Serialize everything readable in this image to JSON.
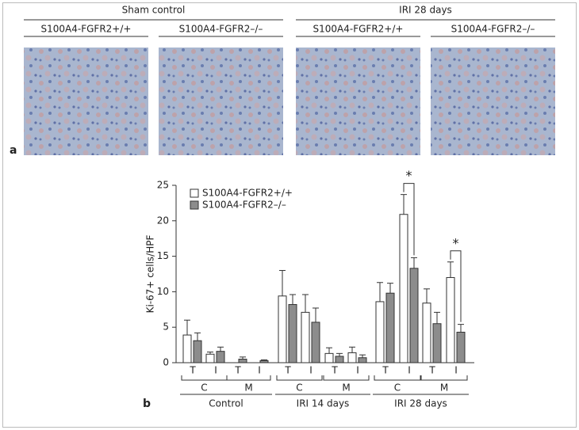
{
  "panel_a": {
    "label": "a",
    "headers": [
      "Sham control",
      "IRI 28 days"
    ],
    "images": [
      "S100A4-FGFR2+/+",
      "S100A4-FGFR2–/–",
      "S100A4-FGFR2+/+",
      "S100A4-FGFR2–/–"
    ]
  },
  "chart_data": {
    "type": "bar",
    "panel_label": "b",
    "y_label": "Ki-67+ cells/HPF",
    "categories": [
      "T",
      "I",
      "T",
      "I",
      "T",
      "I",
      "T",
      "I",
      "T",
      "I",
      "T",
      "I"
    ],
    "subgroups": [
      "C",
      "M",
      "C",
      "M",
      "C",
      "M"
    ],
    "groups": [
      "Control",
      "IRI 14 days",
      "IRI 28 days"
    ],
    "series": [
      {
        "name": "S100A4-FGFR2+/+",
        "color": "#ffffff",
        "values": [
          3.9,
          1.2,
          0,
          0,
          9.4,
          7.1,
          1.3,
          1.4,
          8.6,
          20.9,
          8.4,
          12.0
        ],
        "errors": [
          2.1,
          0.3,
          0,
          0,
          3.6,
          2.5,
          0.8,
          0.8,
          2.7,
          2.8,
          2.0,
          2.2
        ]
      },
      {
        "name": "S100A4-FGFR2–/–",
        "color": "#8c8c8c",
        "values": [
          3.1,
          1.6,
          0.5,
          0.3,
          8.2,
          5.7,
          0.9,
          0.7,
          9.8,
          13.3,
          5.5,
          4.3
        ],
        "errors": [
          1.1,
          0.6,
          0.3,
          0.1,
          1.4,
          2.0,
          0.4,
          0.4,
          1.4,
          1.5,
          1.6,
          1.1
        ]
      }
    ],
    "annotations": [
      "*",
      "*"
    ],
    "ylim": [
      0,
      25
    ],
    "yticks": [
      0,
      5,
      10,
      15,
      20,
      25
    ]
  }
}
